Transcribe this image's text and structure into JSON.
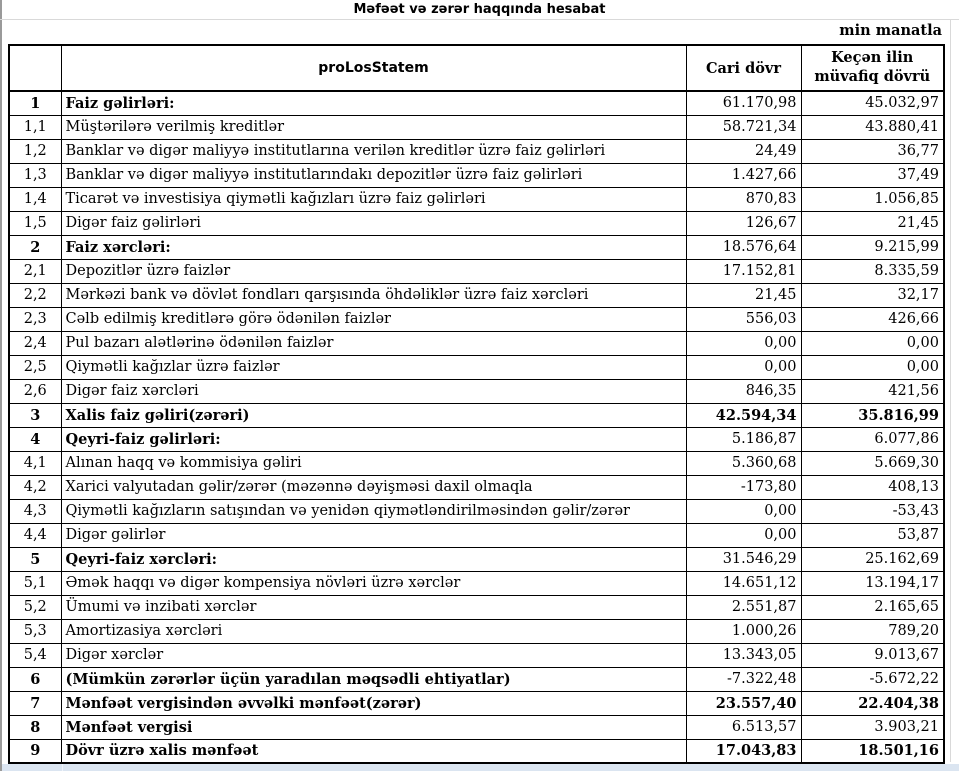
{
  "title": "Məfəət və zərər haqqında hesabat",
  "unit_note": "min manatla",
  "table": {
    "header": {
      "num": "",
      "name": "proLosStatem",
      "col_current": "Cari dövr",
      "col_previous": "Keçən ilin müvafiq dövrü"
    },
    "rows": [
      {
        "no": "1",
        "label": "Faiz gəlirləri:",
        "cur": "61.170,98",
        "prev": "45.032,97",
        "bold_label": true,
        "bold_values": false
      },
      {
        "no": "1,1",
        "label": "Müştərilərə verilmiş kreditlər",
        "cur": "58.721,34",
        "prev": "43.880,41",
        "bold_label": false,
        "bold_values": false
      },
      {
        "no": "1,2",
        "label": "Banklar və digər maliyyə institutlarına verilən kreditlər üzrə faiz gəlirləri",
        "cur": "24,49",
        "prev": "36,77",
        "bold_label": false,
        "bold_values": false
      },
      {
        "no": "1,3",
        "label": "Banklar və digər maliyyə institutlarındakı depozitlər üzrə faiz gəlirləri",
        "cur": "1.427,66",
        "prev": "37,49",
        "bold_label": false,
        "bold_values": false
      },
      {
        "no": "1,4",
        "label": "Ticarət və investisiya qiymətli kağızları üzrə faiz gəlirləri",
        "cur": "870,83",
        "prev": "1.056,85",
        "bold_label": false,
        "bold_values": false
      },
      {
        "no": "1,5",
        "label": "Digər faiz gəlirləri",
        "cur": "126,67",
        "prev": "21,45",
        "bold_label": false,
        "bold_values": false
      },
      {
        "no": "2",
        "label": "Faiz xərcləri:",
        "cur": "18.576,64",
        "prev": "9.215,99",
        "bold_label": true,
        "bold_values": false
      },
      {
        "no": "2,1",
        "label": "Depozitlər üzrə faizlər",
        "cur": "17.152,81",
        "prev": "8.335,59",
        "bold_label": false,
        "bold_values": false
      },
      {
        "no": "2,2",
        "label": "Mərkəzi bank və dövlət fondları qarşısında öhdəliklər üzrə faiz xərcləri",
        "cur": "21,45",
        "prev": "32,17",
        "bold_label": false,
        "bold_values": false
      },
      {
        "no": "2,3",
        "label": "Cəlb edilmiş kreditlərə görə ödənilən faizlər",
        "cur": "556,03",
        "prev": "426,66",
        "bold_label": false,
        "bold_values": false
      },
      {
        "no": "2,4",
        "label": "Pul bazarı alətlərinə ödənilən faizlər",
        "cur": "0,00",
        "prev": "0,00",
        "bold_label": false,
        "bold_values": false
      },
      {
        "no": "2,5",
        "label": "Qiymətli kağızlar üzrə faizlər",
        "cur": "0,00",
        "prev": "0,00",
        "bold_label": false,
        "bold_values": false
      },
      {
        "no": "2,6",
        "label": "Digər faiz xərcləri",
        "cur": "846,35",
        "prev": "421,56",
        "bold_label": false,
        "bold_values": false
      },
      {
        "no": "3",
        "label": "Xalis faiz gəliri(zərəri)",
        "cur": "42.594,34",
        "prev": "35.816,99",
        "bold_label": true,
        "bold_values": true
      },
      {
        "no": "4",
        "label": "Qeyri-faiz gəlirləri:",
        "cur": "5.186,87",
        "prev": "6.077,86",
        "bold_label": true,
        "bold_values": false
      },
      {
        "no": "4,1",
        "label": "Alınan haqq və kommisiya gəliri",
        "cur": "5.360,68",
        "prev": "5.669,30",
        "bold_label": false,
        "bold_values": false
      },
      {
        "no": "4,2",
        "label": "Xarici valyutadan gəlir/zərər (məzənnə dəyişməsi daxil olmaqla",
        "cur": "-173,80",
        "prev": "408,13",
        "bold_label": false,
        "bold_values": false
      },
      {
        "no": "4,3",
        "label": "Qiymətli kağızların satışından və yenidən qiymətləndirilməsindən gəlir/zərər",
        "cur": "0,00",
        "prev": "-53,43",
        "bold_label": false,
        "bold_values": false
      },
      {
        "no": "4,4",
        "label": "Digər gəlirlər",
        "cur": "0,00",
        "prev": "53,87",
        "bold_label": false,
        "bold_values": false
      },
      {
        "no": "5",
        "label": "Qeyri-faiz xərcləri:",
        "cur": "31.546,29",
        "prev": "25.162,69",
        "bold_label": true,
        "bold_values": false
      },
      {
        "no": "5,1",
        "label": "Əmək haqqı və digər kompensiya növləri üzrə xərclər",
        "cur": "14.651,12",
        "prev": "13.194,17",
        "bold_label": false,
        "bold_values": false
      },
      {
        "no": "5,2",
        "label": "Ümumi və inzibati xərclər",
        "cur": "2.551,87",
        "prev": "2.165,65",
        "bold_label": false,
        "bold_values": false
      },
      {
        "no": "5,3",
        "label": "Amortizasiya xərcləri",
        "cur": "1.000,26",
        "prev": "789,20",
        "bold_label": false,
        "bold_values": false
      },
      {
        "no": "5,4",
        "label": "Digər xərclər",
        "cur": "13.343,05",
        "prev": "9.013,67",
        "bold_label": false,
        "bold_values": false
      },
      {
        "no": "6",
        "label": "(Mümkün zərərlər üçün yaradılan məqsədli ehtiyatlar)",
        "cur": "-7.322,48",
        "prev": "-5.672,22",
        "bold_label": true,
        "bold_values": false
      },
      {
        "no": "7",
        "label": "Mənfəət vergisindən əvvəlki mənfəət(zərər)",
        "cur": "23.557,40",
        "prev": "22.404,38",
        "bold_label": true,
        "bold_values": true
      },
      {
        "no": "8",
        "label": "Mənfəət vergisi",
        "cur": "6.513,57",
        "prev": "3.903,21",
        "bold_label": true,
        "bold_values": false
      },
      {
        "no": "9",
        "label": "Dövr üzrə xalis mənfəət",
        "cur": "17.043,83",
        "prev": "18.501,16",
        "bold_label": true,
        "bold_values": true
      }
    ]
  },
  "colors": {
    "bottom_row_fill": "#dbe5f1",
    "gridline": "#d9d9d9",
    "border": "#000000"
  }
}
